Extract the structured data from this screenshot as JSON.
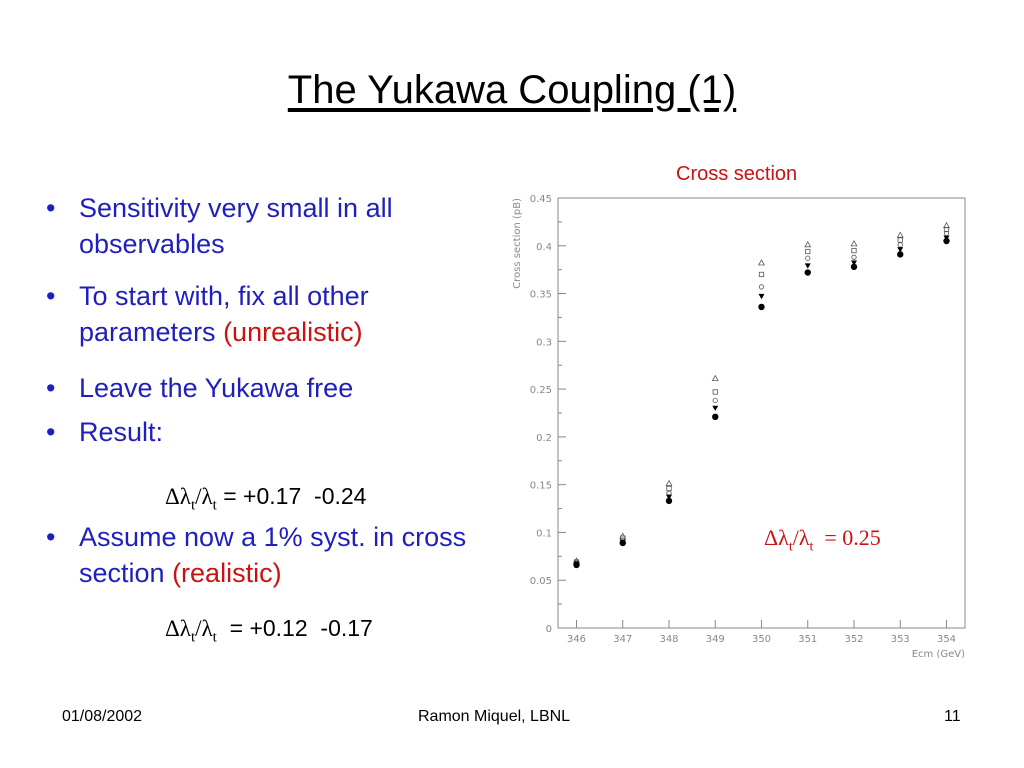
{
  "slide": {
    "title": "The Yukawa Coupling (1)",
    "bullets": {
      "b1": "Sensitivity very small in all observables",
      "b2_text": "To start with, fix all other parameters ",
      "b2_red": "(unrealistic)",
      "b3": "Leave the Yukawa free",
      "b4": "Result:",
      "b5_text": "Assume now a 1% syst. in cross section ",
      "b5_red": "(realistic)"
    },
    "formula1": {
      "symbol": "Δλ",
      "sub1": "t",
      "slash": "/λ",
      "sub2": "t",
      "value": " = +0.17  -0.24"
    },
    "formula2": {
      "symbol": "Δλ",
      "sub1": "t",
      "slash": "/λ",
      "sub2": "t",
      "value": "  = +0.12  -0.17"
    },
    "chart_caption": "Cross section",
    "chart_annotation": {
      "symbol": "Δλ",
      "sub1": "t",
      "slash": "/λ",
      "sub2": "t",
      "value": "  = 0.25"
    },
    "footer": {
      "date": "01/08/2002",
      "author": "Ramon Miquel, LBNL",
      "page": "11"
    }
  },
  "chart_data": {
    "type": "scatter",
    "xlabel": "Ecm (GeV)",
    "ylabel": "Cross section (pB)",
    "xlim": [
      345.6,
      354.4
    ],
    "ylim": [
      0,
      0.45
    ],
    "x_ticks": [
      "346",
      "347",
      "348",
      "349",
      "350",
      "351",
      "352",
      "353",
      "354"
    ],
    "y_ticks": [
      "0",
      "0.05",
      "0.1",
      "0.15",
      "0.2",
      "0.25",
      "0.3",
      "0.35",
      "0.4",
      "0.45"
    ],
    "x": [
      346,
      347,
      348,
      349,
      350,
      351,
      352,
      353,
      354
    ],
    "series": [
      {
        "marker": "triangle-open",
        "values": [
          0.07,
          0.096,
          0.151,
          0.261,
          0.382,
          0.401,
          0.402,
          0.411,
          0.421
        ]
      },
      {
        "marker": "square-open",
        "values": [
          0.069,
          0.094,
          0.146,
          0.247,
          0.37,
          0.394,
          0.395,
          0.406,
          0.417
        ]
      },
      {
        "marker": "circle-open",
        "values": [
          0.068,
          0.092,
          0.141,
          0.238,
          0.357,
          0.387,
          0.388,
          0.401,
          0.413
        ]
      },
      {
        "marker": "triangle-down-filled",
        "values": [
          0.067,
          0.09,
          0.137,
          0.23,
          0.347,
          0.379,
          0.382,
          0.396,
          0.408
        ]
      },
      {
        "marker": "circle-filled",
        "values": [
          0.066,
          0.089,
          0.133,
          0.221,
          0.336,
          0.372,
          0.378,
          0.391,
          0.405
        ]
      }
    ],
    "grid": false,
    "color": "#000000",
    "axis_color": "#888888"
  }
}
